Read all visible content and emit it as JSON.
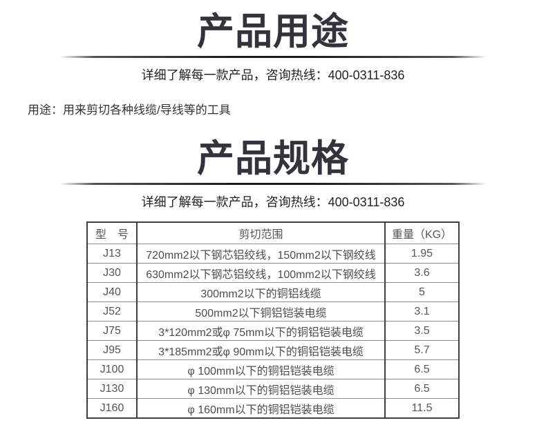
{
  "colors": {
    "title_color": "#33333d",
    "divider_color": "#1a1a1f",
    "table_border_dark": "#3f3f3f",
    "table_border_light": "#8a8a8a",
    "body_text": "#333333"
  },
  "section_usage": {
    "title": "产品用途",
    "subtitle": "详细了解每一款产品，咨询热线：400-0311-836",
    "usage_line": "用途：用来剪切各种线缆/导线等的工具"
  },
  "section_specs": {
    "title": "产品规格",
    "subtitle": "详细了解每一款产品，咨询热线：400-0311-836"
  },
  "spec_table": {
    "headers": [
      "型　号",
      "剪切范围",
      "重量（KG）"
    ],
    "rows": [
      [
        "J13",
        "720mm2以下钢芯铝绞线，150mm2以下钢绞线",
        "1.95"
      ],
      [
        "J30",
        "630mm2以下钢芯铝绞线，100mm2以下钢绞线",
        "3.6"
      ],
      [
        "J40",
        "300mm2以下的铜铝线缆",
        "5"
      ],
      [
        "J52",
        "500mm2以下铜铝铠装电缆",
        "3.1"
      ],
      [
        "J75",
        "3*120mm2或φ 75mm以下的铜铝铠装电缆",
        "3.5"
      ],
      [
        "J95",
        "3*185mm2或φ 90mm以下的铜铝铠装电缆",
        "5.7"
      ],
      [
        "J100",
        "φ 100mm以下的铜铝铠装电缆",
        "6.5"
      ],
      [
        "J130",
        "φ 130mm以下的铜铝铠装电缆",
        "6.5"
      ],
      [
        "J160",
        "φ 160mm以下的铜铝铠装电缆",
        "11.5"
      ]
    ]
  }
}
